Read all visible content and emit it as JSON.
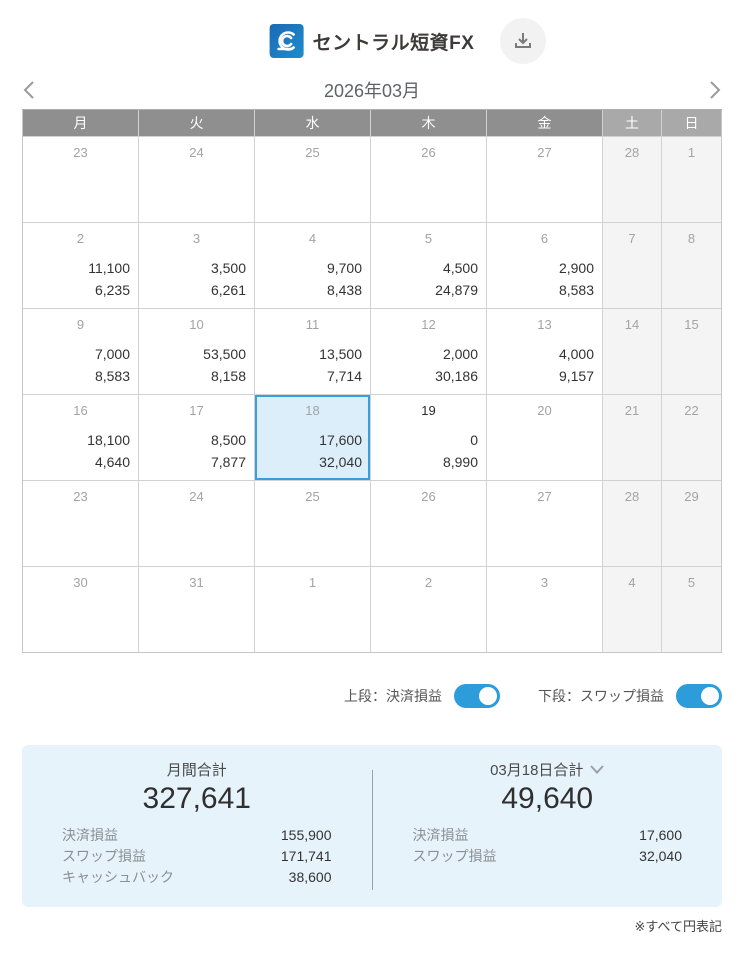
{
  "header": {
    "logo_text": "セントラル短資FX",
    "download_icon": "download",
    "logo_icon": "central-tanshi-c-wave"
  },
  "month_nav": {
    "title": "2026年03月",
    "prev_icon": "chevron-left",
    "next_icon": "chevron-right"
  },
  "calendar": {
    "weekday_headers": [
      "月",
      "火",
      "水",
      "木",
      "金",
      "土",
      "日"
    ],
    "weeks": [
      [
        {
          "day": "23"
        },
        {
          "day": "24"
        },
        {
          "day": "25"
        },
        {
          "day": "26"
        },
        {
          "day": "27"
        },
        {
          "day": "28"
        },
        {
          "day": "1"
        }
      ],
      [
        {
          "day": "2",
          "upper": "11,100",
          "lower": "6,235"
        },
        {
          "day": "3",
          "upper": "3,500",
          "lower": "6,261"
        },
        {
          "day": "4",
          "upper": "9,700",
          "lower": "8,438"
        },
        {
          "day": "5",
          "upper": "4,500",
          "lower": "24,879"
        },
        {
          "day": "6",
          "upper": "2,900",
          "lower": "8,583"
        },
        {
          "day": "7"
        },
        {
          "day": "8"
        }
      ],
      [
        {
          "day": "9",
          "upper": "7,000",
          "lower": "8,583"
        },
        {
          "day": "10",
          "upper": "53,500",
          "lower": "8,158"
        },
        {
          "day": "11",
          "upper": "13,500",
          "lower": "7,714"
        },
        {
          "day": "12",
          "upper": "2,000",
          "lower": "30,186"
        },
        {
          "day": "13",
          "upper": "4,000",
          "lower": "9,157"
        },
        {
          "day": "14"
        },
        {
          "day": "15"
        }
      ],
      [
        {
          "day": "16",
          "upper": "18,100",
          "lower": "4,640"
        },
        {
          "day": "17",
          "upper": "8,500",
          "lower": "7,877"
        },
        {
          "day": "18",
          "upper": "17,600",
          "lower": "32,040",
          "selected": true
        },
        {
          "day": "19",
          "upper": "0",
          "lower": "8,990",
          "today": true
        },
        {
          "day": "20"
        },
        {
          "day": "21"
        },
        {
          "day": "22"
        }
      ],
      [
        {
          "day": "23"
        },
        {
          "day": "24"
        },
        {
          "day": "25"
        },
        {
          "day": "26"
        },
        {
          "day": "27"
        },
        {
          "day": "28"
        },
        {
          "day": "29"
        }
      ],
      [
        {
          "day": "30"
        },
        {
          "day": "31"
        },
        {
          "day": "1"
        },
        {
          "day": "2"
        },
        {
          "day": "3"
        },
        {
          "day": "4"
        },
        {
          "day": "5"
        }
      ]
    ]
  },
  "toggles": {
    "upper": {
      "label": "上段：決済損益",
      "on": true
    },
    "lower": {
      "label": "下段：スワップ損益",
      "on": true
    }
  },
  "summary": {
    "monthly": {
      "title": "月間合計",
      "total": "327,641",
      "rows": [
        {
          "label": "決済損益",
          "value": "155,900"
        },
        {
          "label": "スワップ損益",
          "value": "171,741"
        },
        {
          "label": "キャッシュバック",
          "value": "38,600"
        }
      ]
    },
    "daily": {
      "title": "03月18日合計",
      "caret_icon": "chevron-down",
      "total": "49,640",
      "rows": [
        {
          "label": "決済損益",
          "value": "17,600"
        },
        {
          "label": "スワップ損益",
          "value": "32,040"
        }
      ]
    }
  },
  "footer": {
    "note": "※すべて円表記"
  },
  "colors": {
    "accent_blue": "#2d9cdb",
    "selected_cell_bg": "#dceef9",
    "selected_cell_border": "#3b9ed8",
    "weekday_header_bg": "#8f8f8f",
    "weekend_header_bg": "#a9a9a9",
    "weekend_cell_bg": "#f4f4f4",
    "summary_panel_bg": "#e7f3fb"
  }
}
